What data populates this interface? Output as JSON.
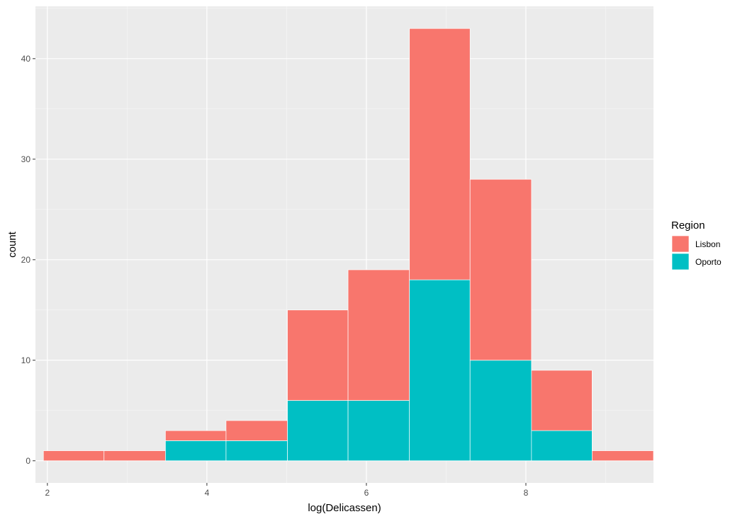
{
  "chart_data": {
    "type": "bar",
    "stacked": true,
    "histogram": true,
    "xlabel": "log(Delicassen)",
    "ylabel": "count",
    "xlim": [
      1.85,
      9.6
    ],
    "ylim": [
      -2.2,
      45.2
    ],
    "x_ticks": [
      2,
      4,
      6,
      8
    ],
    "y_ticks": [
      0,
      10,
      20,
      30,
      40
    ],
    "x_tick_labels": [
      "2",
      "4",
      "6",
      "8"
    ],
    "y_tick_labels": [
      "0",
      "10",
      "20",
      "30",
      "40"
    ],
    "grid": true,
    "bin_edges": [
      1.95,
      2.71,
      3.48,
      4.24,
      5.01,
      5.77,
      6.54,
      7.3,
      8.07,
      8.83,
      9.6
    ],
    "series": [
      {
        "name": "Lisbon",
        "color": "#F8766D",
        "values": [
          1,
          1,
          1,
          2,
          9,
          13,
          25,
          18,
          6,
          1
        ]
      },
      {
        "name": "Oporto",
        "color": "#00BFC4",
        "values": [
          0,
          0,
          2,
          2,
          6,
          6,
          18,
          10,
          3,
          0
        ]
      }
    ],
    "legend": {
      "title": "Region",
      "position": "right"
    }
  }
}
